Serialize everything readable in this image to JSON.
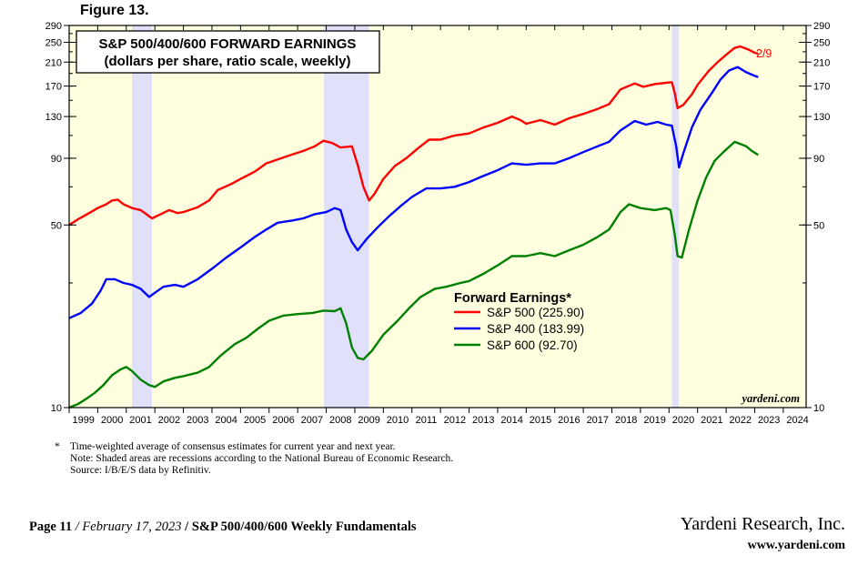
{
  "figure_label": "Figure 13.",
  "chart_data": {
    "type": "line",
    "title_line1": "S&P 500/400/600 FORWARD EARNINGS",
    "title_line2": "(dollars per share, ratio scale, weekly)",
    "y_scale": "log",
    "ylim": [
      10,
      290
    ],
    "xlim": [
      1999.0,
      2024.8
    ],
    "y_ticks": [
      10,
      50,
      90,
      130,
      170,
      210,
      250,
      290
    ],
    "x_ticks": [
      "1999",
      "2000",
      "2001",
      "2002",
      "2003",
      "2004",
      "2005",
      "2006",
      "2007",
      "2008",
      "2009",
      "2010",
      "2011",
      "2012",
      "2013",
      "2014",
      "2015",
      "2016",
      "2017",
      "2018",
      "2019",
      "2020",
      "2021",
      "2022",
      "2023",
      "2024"
    ],
    "grid": false,
    "background_color": "#ffffe0",
    "recession_color": "#e0e0fb",
    "recessions": [
      [
        2001.2,
        2001.9
      ],
      [
        2007.92,
        2009.5
      ],
      [
        2020.1,
        2020.35
      ]
    ],
    "legend_title": "Forward Earnings*",
    "legend_position": "center-right",
    "end_label": "2/9",
    "watermark": "yardeni.com",
    "series": [
      {
        "name": "S&P 500 (225.90)",
        "color": "#ff0000",
        "points": [
          [
            1999.0,
            50
          ],
          [
            1999.3,
            52.5
          ],
          [
            1999.7,
            55.5
          ],
          [
            2000.0,
            58
          ],
          [
            2000.3,
            60
          ],
          [
            2000.5,
            62
          ],
          [
            2000.7,
            62.5
          ],
          [
            2000.9,
            60
          ],
          [
            2001.2,
            58
          ],
          [
            2001.5,
            57
          ],
          [
            2001.7,
            55
          ],
          [
            2001.9,
            53
          ],
          [
            2002.2,
            55
          ],
          [
            2002.5,
            57
          ],
          [
            2002.8,
            55.5
          ],
          [
            2003.0,
            56
          ],
          [
            2003.5,
            58.5
          ],
          [
            2003.9,
            62
          ],
          [
            2004.2,
            68
          ],
          [
            2004.7,
            72
          ],
          [
            2005.0,
            75
          ],
          [
            2005.5,
            80
          ],
          [
            2005.9,
            86
          ],
          [
            2006.3,
            89
          ],
          [
            2006.8,
            93
          ],
          [
            2007.2,
            96
          ],
          [
            2007.6,
            100
          ],
          [
            2007.9,
            105
          ],
          [
            2008.2,
            103
          ],
          [
            2008.5,
            99
          ],
          [
            2008.9,
            100
          ],
          [
            2009.1,
            85
          ],
          [
            2009.3,
            70
          ],
          [
            2009.5,
            62
          ],
          [
            2009.7,
            66
          ],
          [
            2010.0,
            75
          ],
          [
            2010.4,
            84
          ],
          [
            2010.8,
            90
          ],
          [
            2011.2,
            98
          ],
          [
            2011.6,
            106
          ],
          [
            2012.0,
            106
          ],
          [
            2012.5,
            110
          ],
          [
            2013.0,
            112
          ],
          [
            2013.5,
            118
          ],
          [
            2014.0,
            123
          ],
          [
            2014.5,
            130
          ],
          [
            2014.8,
            126
          ],
          [
            2015.0,
            122
          ],
          [
            2015.5,
            126
          ],
          [
            2016.0,
            121
          ],
          [
            2016.5,
            128
          ],
          [
            2017.0,
            133
          ],
          [
            2017.5,
            139
          ],
          [
            2017.9,
            145
          ],
          [
            2018.3,
            165
          ],
          [
            2018.8,
            174
          ],
          [
            2019.1,
            169
          ],
          [
            2019.5,
            173
          ],
          [
            2019.9,
            175
          ],
          [
            2020.1,
            176
          ],
          [
            2020.2,
            160
          ],
          [
            2020.3,
            140
          ],
          [
            2020.5,
            144
          ],
          [
            2020.8,
            158
          ],
          [
            2021.0,
            172
          ],
          [
            2021.4,
            195
          ],
          [
            2021.7,
            210
          ],
          [
            2022.0,
            224
          ],
          [
            2022.3,
            238
          ],
          [
            2022.5,
            241
          ],
          [
            2022.8,
            234
          ],
          [
            2023.0,
            228
          ],
          [
            2023.12,
            226
          ]
        ]
      },
      {
        "name": "S&P 400 (183.99)",
        "color": "#0000ff",
        "points": [
          [
            1999.0,
            22
          ],
          [
            1999.4,
            23
          ],
          [
            1999.8,
            25
          ],
          [
            2000.1,
            28
          ],
          [
            2000.3,
            31
          ],
          [
            2000.6,
            31
          ],
          [
            2000.9,
            30
          ],
          [
            2001.2,
            29.5
          ],
          [
            2001.5,
            28.5
          ],
          [
            2001.8,
            26.5
          ],
          [
            2002.0,
            27.5
          ],
          [
            2002.3,
            29
          ],
          [
            2002.7,
            29.5
          ],
          [
            2003.0,
            29
          ],
          [
            2003.5,
            31
          ],
          [
            2004.0,
            34
          ],
          [
            2004.5,
            37.5
          ],
          [
            2005.0,
            41
          ],
          [
            2005.5,
            45
          ],
          [
            2005.9,
            48
          ],
          [
            2006.3,
            51
          ],
          [
            2006.8,
            52
          ],
          [
            2007.2,
            53
          ],
          [
            2007.6,
            55
          ],
          [
            2008.0,
            56
          ],
          [
            2008.3,
            58
          ],
          [
            2008.5,
            57
          ],
          [
            2008.7,
            48
          ],
          [
            2008.9,
            43
          ],
          [
            2009.1,
            40
          ],
          [
            2009.4,
            44
          ],
          [
            2009.8,
            49
          ],
          [
            2010.2,
            54
          ],
          [
            2010.6,
            59
          ],
          [
            2011.0,
            64
          ],
          [
            2011.5,
            69
          ],
          [
            2012.0,
            69
          ],
          [
            2012.5,
            70
          ],
          [
            2013.0,
            73
          ],
          [
            2013.5,
            77
          ],
          [
            2014.0,
            81
          ],
          [
            2014.5,
            86
          ],
          [
            2015.0,
            85
          ],
          [
            2015.5,
            86
          ],
          [
            2016.0,
            86
          ],
          [
            2016.5,
            90
          ],
          [
            2017.0,
            95
          ],
          [
            2017.5,
            100
          ],
          [
            2017.9,
            104
          ],
          [
            2018.3,
            115
          ],
          [
            2018.8,
            125
          ],
          [
            2019.2,
            121
          ],
          [
            2019.6,
            124
          ],
          [
            2019.9,
            121
          ],
          [
            2020.1,
            120
          ],
          [
            2020.25,
            100
          ],
          [
            2020.35,
            83
          ],
          [
            2020.5,
            94
          ],
          [
            2020.8,
            118
          ],
          [
            2021.1,
            138
          ],
          [
            2021.5,
            160
          ],
          [
            2021.8,
            180
          ],
          [
            2022.1,
            195
          ],
          [
            2022.4,
            201
          ],
          [
            2022.7,
            192
          ],
          [
            2023.0,
            186
          ],
          [
            2023.12,
            184
          ]
        ]
      },
      {
        "name": "S&P 600 (92.70)",
        "color": "#008000",
        "points": [
          [
            1999.0,
            10
          ],
          [
            1999.3,
            10.3
          ],
          [
            1999.6,
            10.8
          ],
          [
            1999.9,
            11.4
          ],
          [
            2000.2,
            12.2
          ],
          [
            2000.5,
            13.3
          ],
          [
            2000.8,
            14.0
          ],
          [
            2001.0,
            14.3
          ],
          [
            2001.2,
            13.8
          ],
          [
            2001.5,
            12.8
          ],
          [
            2001.8,
            12.2
          ],
          [
            2002.0,
            12.0
          ],
          [
            2002.3,
            12.6
          ],
          [
            2002.7,
            13.0
          ],
          [
            2003.0,
            13.2
          ],
          [
            2003.5,
            13.6
          ],
          [
            2003.9,
            14.3
          ],
          [
            2004.3,
            15.8
          ],
          [
            2004.8,
            17.5
          ],
          [
            2005.2,
            18.5
          ],
          [
            2005.6,
            20
          ],
          [
            2006.0,
            21.5
          ],
          [
            2006.5,
            22.5
          ],
          [
            2007.0,
            22.8
          ],
          [
            2007.5,
            23
          ],
          [
            2007.9,
            23.5
          ],
          [
            2008.3,
            23.4
          ],
          [
            2008.5,
            24
          ],
          [
            2008.7,
            21
          ],
          [
            2008.9,
            17
          ],
          [
            2009.1,
            15.5
          ],
          [
            2009.3,
            15.3
          ],
          [
            2009.6,
            16.5
          ],
          [
            2010.0,
            19
          ],
          [
            2010.5,
            21.5
          ],
          [
            2010.9,
            24
          ],
          [
            2011.3,
            26.5
          ],
          [
            2011.8,
            28.5
          ],
          [
            2012.2,
            29
          ],
          [
            2012.7,
            30
          ],
          [
            2013.0,
            30.5
          ],
          [
            2013.5,
            32.5
          ],
          [
            2014.0,
            35
          ],
          [
            2014.5,
            38
          ],
          [
            2015.0,
            38
          ],
          [
            2015.5,
            39
          ],
          [
            2016.0,
            38
          ],
          [
            2016.5,
            40
          ],
          [
            2017.0,
            42
          ],
          [
            2017.5,
            45
          ],
          [
            2017.9,
            48
          ],
          [
            2018.3,
            56
          ],
          [
            2018.6,
            60
          ],
          [
            2019.0,
            58
          ],
          [
            2019.5,
            57
          ],
          [
            2019.9,
            58
          ],
          [
            2020.05,
            57
          ],
          [
            2020.2,
            46
          ],
          [
            2020.3,
            38
          ],
          [
            2020.45,
            37.5
          ],
          [
            2020.7,
            48
          ],
          [
            2021.0,
            62
          ],
          [
            2021.3,
            76
          ],
          [
            2021.6,
            88
          ],
          [
            2021.9,
            95
          ],
          [
            2022.3,
            104
          ],
          [
            2022.7,
            100
          ],
          [
            2022.9,
            96
          ],
          [
            2023.12,
            92.7
          ]
        ]
      }
    ]
  },
  "footnotes": {
    "line1": "Time-weighted average of consensus estimates for current year and next year.",
    "marker": "*",
    "line2": "Note: Shaded areas are recessions according to the National Bureau of Economic Research.",
    "line3": "Source: I/B/E/S data by Refinitiv."
  },
  "footer": {
    "page": "Page 11",
    "sep1": " / ",
    "date": "February 17, 2023",
    "sep2": " / ",
    "report": "S&P 500/400/600 Weekly Fundamentals",
    "company": "Yardeni Research, Inc.",
    "url": "www.yardeni.com"
  }
}
